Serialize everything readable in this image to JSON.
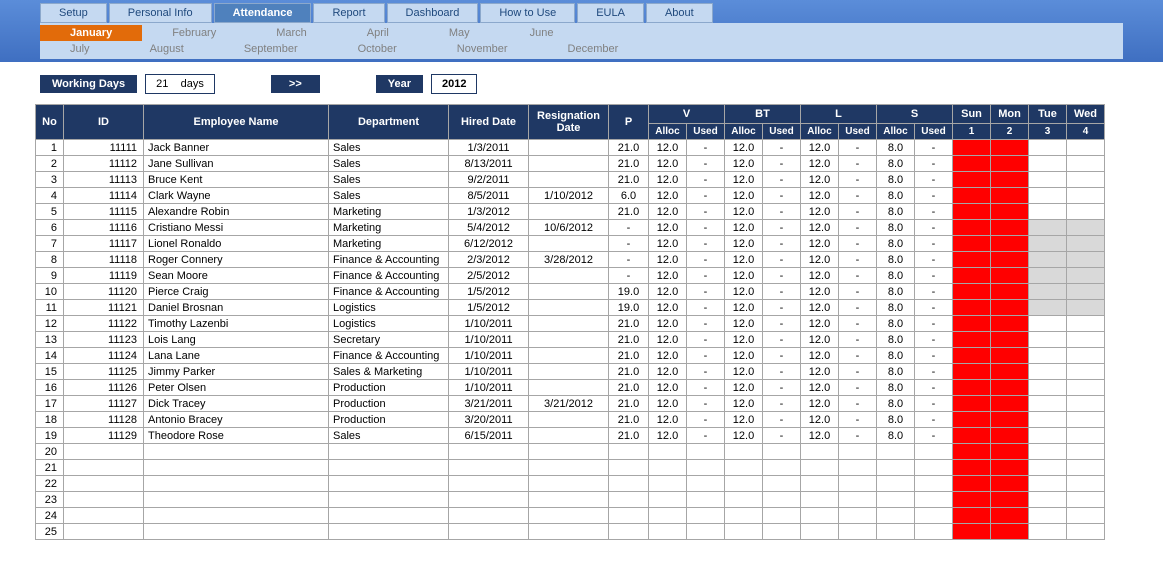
{
  "nav": {
    "tabs": [
      "Setup",
      "Personal Info",
      "Attendance",
      "Report",
      "Dashboard",
      "How to Use",
      "EULA",
      "About"
    ],
    "active_tab": 2,
    "months_row1": [
      "January",
      "February",
      "March",
      "April",
      "May",
      "June"
    ],
    "months_row2": [
      "July",
      "August",
      "September",
      "October",
      "November",
      "December"
    ],
    "active_month": 0
  },
  "controls": {
    "working_days_label": "Working Days",
    "working_days_value": "21",
    "working_days_unit": "days",
    "next_btn": ">>",
    "year_label": "Year",
    "year_value": "2012"
  },
  "colors": {
    "header_bg": "#1f3864",
    "header_fg": "#ffffff",
    "tab_bg": "#c5d9f1",
    "tab_active_bg": "#4f81bd",
    "month_active_bg": "#e26b0a",
    "weekend_bg": "#ff0000",
    "disabled_bg": "#d9d9d9",
    "border": "#a6a6a6"
  },
  "table": {
    "headers": {
      "no": "No",
      "id": "ID",
      "name": "Employee Name",
      "dept": "Department",
      "hired": "Hired Date",
      "resign": "Resignation Date",
      "p": "P",
      "groups": [
        "V",
        "BT",
        "L",
        "S"
      ],
      "sub": [
        "Alloc",
        "Used"
      ],
      "days": [
        "Sun",
        "Mon",
        "Tue",
        "Wed"
      ],
      "daynums": [
        "1",
        "2",
        "3",
        "4"
      ]
    },
    "rows": [
      {
        "no": 1,
        "id": "11111",
        "name": "Jack Banner",
        "dept": "Sales",
        "hired": "1/3/2011",
        "resign": "",
        "p": "21.0",
        "v_a": "12.0",
        "v_u": "-",
        "bt_a": "12.0",
        "bt_u": "-",
        "l_a": "12.0",
        "l_u": "-",
        "s_a": "8.0",
        "s_u": "-",
        "d": [
          "R",
          "R",
          "",
          ""
        ]
      },
      {
        "no": 2,
        "id": "11112",
        "name": "Jane Sullivan",
        "dept": "Sales",
        "hired": "8/13/2011",
        "resign": "",
        "p": "21.0",
        "v_a": "12.0",
        "v_u": "-",
        "bt_a": "12.0",
        "bt_u": "-",
        "l_a": "12.0",
        "l_u": "-",
        "s_a": "8.0",
        "s_u": "-",
        "d": [
          "R",
          "R",
          "",
          ""
        ]
      },
      {
        "no": 3,
        "id": "11113",
        "name": "Bruce Kent",
        "dept": "Sales",
        "hired": "9/2/2011",
        "resign": "",
        "p": "21.0",
        "v_a": "12.0",
        "v_u": "-",
        "bt_a": "12.0",
        "bt_u": "-",
        "l_a": "12.0",
        "l_u": "-",
        "s_a": "8.0",
        "s_u": "-",
        "d": [
          "R",
          "R",
          "",
          ""
        ]
      },
      {
        "no": 4,
        "id": "11114",
        "name": "Clark Wayne",
        "dept": "Sales",
        "hired": "8/5/2011",
        "resign": "1/10/2012",
        "p": "6.0",
        "v_a": "12.0",
        "v_u": "-",
        "bt_a": "12.0",
        "bt_u": "-",
        "l_a": "12.0",
        "l_u": "-",
        "s_a": "8.0",
        "s_u": "-",
        "d": [
          "R",
          "R",
          "",
          ""
        ]
      },
      {
        "no": 5,
        "id": "11115",
        "name": "Alexandre Robin",
        "dept": "Marketing",
        "hired": "1/3/2012",
        "resign": "",
        "p": "21.0",
        "v_a": "12.0",
        "v_u": "-",
        "bt_a": "12.0",
        "bt_u": "-",
        "l_a": "12.0",
        "l_u": "-",
        "s_a": "8.0",
        "s_u": "-",
        "d": [
          "R",
          "R",
          "",
          ""
        ]
      },
      {
        "no": 6,
        "id": "11116",
        "name": "Cristiano Messi",
        "dept": "Marketing",
        "hired": "5/4/2012",
        "resign": "10/6/2012",
        "p": "-",
        "v_a": "12.0",
        "v_u": "-",
        "bt_a": "12.0",
        "bt_u": "-",
        "l_a": "12.0",
        "l_u": "-",
        "s_a": "8.0",
        "s_u": "-",
        "d": [
          "R",
          "R",
          "G",
          "G"
        ]
      },
      {
        "no": 7,
        "id": "11117",
        "name": "Lionel Ronaldo",
        "dept": "Marketing",
        "hired": "6/12/2012",
        "resign": "",
        "p": "-",
        "v_a": "12.0",
        "v_u": "-",
        "bt_a": "12.0",
        "bt_u": "-",
        "l_a": "12.0",
        "l_u": "-",
        "s_a": "8.0",
        "s_u": "-",
        "d": [
          "R",
          "R",
          "G",
          "G"
        ]
      },
      {
        "no": 8,
        "id": "11118",
        "name": "Roger Connery",
        "dept": "Finance & Accounting",
        "hired": "2/3/2012",
        "resign": "3/28/2012",
        "p": "-",
        "v_a": "12.0",
        "v_u": "-",
        "bt_a": "12.0",
        "bt_u": "-",
        "l_a": "12.0",
        "l_u": "-",
        "s_a": "8.0",
        "s_u": "-",
        "d": [
          "R",
          "R",
          "G",
          "G"
        ]
      },
      {
        "no": 9,
        "id": "11119",
        "name": "Sean Moore",
        "dept": "Finance & Accounting",
        "hired": "2/5/2012",
        "resign": "",
        "p": "-",
        "v_a": "12.0",
        "v_u": "-",
        "bt_a": "12.0",
        "bt_u": "-",
        "l_a": "12.0",
        "l_u": "-",
        "s_a": "8.0",
        "s_u": "-",
        "d": [
          "R",
          "R",
          "G",
          "G"
        ]
      },
      {
        "no": 10,
        "id": "11120",
        "name": "Pierce Craig",
        "dept": "Finance & Accounting",
        "hired": "1/5/2012",
        "resign": "",
        "p": "19.0",
        "v_a": "12.0",
        "v_u": "-",
        "bt_a": "12.0",
        "bt_u": "-",
        "l_a": "12.0",
        "l_u": "-",
        "s_a": "8.0",
        "s_u": "-",
        "d": [
          "R",
          "R",
          "G",
          "G"
        ]
      },
      {
        "no": 11,
        "id": "11121",
        "name": "Daniel Brosnan",
        "dept": "Logistics",
        "hired": "1/5/2012",
        "resign": "",
        "p": "19.0",
        "v_a": "12.0",
        "v_u": "-",
        "bt_a": "12.0",
        "bt_u": "-",
        "l_a": "12.0",
        "l_u": "-",
        "s_a": "8.0",
        "s_u": "-",
        "d": [
          "R",
          "R",
          "G",
          "G"
        ]
      },
      {
        "no": 12,
        "id": "11122",
        "name": "Timothy Lazenbi",
        "dept": "Logistics",
        "hired": "1/10/2011",
        "resign": "",
        "p": "21.0",
        "v_a": "12.0",
        "v_u": "-",
        "bt_a": "12.0",
        "bt_u": "-",
        "l_a": "12.0",
        "l_u": "-",
        "s_a": "8.0",
        "s_u": "-",
        "d": [
          "R",
          "R",
          "",
          ""
        ]
      },
      {
        "no": 13,
        "id": "11123",
        "name": "Lois Lang",
        "dept": "Secretary",
        "hired": "1/10/2011",
        "resign": "",
        "p": "21.0",
        "v_a": "12.0",
        "v_u": "-",
        "bt_a": "12.0",
        "bt_u": "-",
        "l_a": "12.0",
        "l_u": "-",
        "s_a": "8.0",
        "s_u": "-",
        "d": [
          "R",
          "R",
          "",
          ""
        ]
      },
      {
        "no": 14,
        "id": "11124",
        "name": "Lana Lane",
        "dept": "Finance & Accounting",
        "hired": "1/10/2011",
        "resign": "",
        "p": "21.0",
        "v_a": "12.0",
        "v_u": "-",
        "bt_a": "12.0",
        "bt_u": "-",
        "l_a": "12.0",
        "l_u": "-",
        "s_a": "8.0",
        "s_u": "-",
        "d": [
          "R",
          "R",
          "",
          ""
        ]
      },
      {
        "no": 15,
        "id": "11125",
        "name": "Jimmy Parker",
        "dept": "Sales & Marketing",
        "hired": "1/10/2011",
        "resign": "",
        "p": "21.0",
        "v_a": "12.0",
        "v_u": "-",
        "bt_a": "12.0",
        "bt_u": "-",
        "l_a": "12.0",
        "l_u": "-",
        "s_a": "8.0",
        "s_u": "-",
        "d": [
          "R",
          "R",
          "",
          ""
        ]
      },
      {
        "no": 16,
        "id": "11126",
        "name": "Peter Olsen",
        "dept": "Production",
        "hired": "1/10/2011",
        "resign": "",
        "p": "21.0",
        "v_a": "12.0",
        "v_u": "-",
        "bt_a": "12.0",
        "bt_u": "-",
        "l_a": "12.0",
        "l_u": "-",
        "s_a": "8.0",
        "s_u": "-",
        "d": [
          "R",
          "R",
          "",
          ""
        ]
      },
      {
        "no": 17,
        "id": "11127",
        "name": "Dick Tracey",
        "dept": "Production",
        "hired": "3/21/2011",
        "resign": "3/21/2012",
        "p": "21.0",
        "v_a": "12.0",
        "v_u": "-",
        "bt_a": "12.0",
        "bt_u": "-",
        "l_a": "12.0",
        "l_u": "-",
        "s_a": "8.0",
        "s_u": "-",
        "d": [
          "R",
          "R",
          "",
          ""
        ]
      },
      {
        "no": 18,
        "id": "11128",
        "name": "Antonio Bracey",
        "dept": "Production",
        "hired": "3/20/2011",
        "resign": "",
        "p": "21.0",
        "v_a": "12.0",
        "v_u": "-",
        "bt_a": "12.0",
        "bt_u": "-",
        "l_a": "12.0",
        "l_u": "-",
        "s_a": "8.0",
        "s_u": "-",
        "d": [
          "R",
          "R",
          "",
          ""
        ]
      },
      {
        "no": 19,
        "id": "11129",
        "name": "Theodore Rose",
        "dept": "Sales",
        "hired": "6/15/2011",
        "resign": "",
        "p": "21.0",
        "v_a": "12.0",
        "v_u": "-",
        "bt_a": "12.0",
        "bt_u": "-",
        "l_a": "12.0",
        "l_u": "-",
        "s_a": "8.0",
        "s_u": "-",
        "d": [
          "R",
          "R",
          "",
          ""
        ]
      },
      {
        "no": 20,
        "id": "",
        "name": "",
        "dept": "",
        "hired": "",
        "resign": "",
        "p": "",
        "v_a": "",
        "v_u": "",
        "bt_a": "",
        "bt_u": "",
        "l_a": "",
        "l_u": "",
        "s_a": "",
        "s_u": "",
        "d": [
          "R",
          "R",
          "",
          ""
        ]
      },
      {
        "no": 21,
        "id": "",
        "name": "",
        "dept": "",
        "hired": "",
        "resign": "",
        "p": "",
        "v_a": "",
        "v_u": "",
        "bt_a": "",
        "bt_u": "",
        "l_a": "",
        "l_u": "",
        "s_a": "",
        "s_u": "",
        "d": [
          "R",
          "R",
          "",
          ""
        ]
      },
      {
        "no": 22,
        "id": "",
        "name": "",
        "dept": "",
        "hired": "",
        "resign": "",
        "p": "",
        "v_a": "",
        "v_u": "",
        "bt_a": "",
        "bt_u": "",
        "l_a": "",
        "l_u": "",
        "s_a": "",
        "s_u": "",
        "d": [
          "R",
          "R",
          "",
          ""
        ]
      },
      {
        "no": 23,
        "id": "",
        "name": "",
        "dept": "",
        "hired": "",
        "resign": "",
        "p": "",
        "v_a": "",
        "v_u": "",
        "bt_a": "",
        "bt_u": "",
        "l_a": "",
        "l_u": "",
        "s_a": "",
        "s_u": "",
        "d": [
          "R",
          "R",
          "",
          ""
        ]
      },
      {
        "no": 24,
        "id": "",
        "name": "",
        "dept": "",
        "hired": "",
        "resign": "",
        "p": "",
        "v_a": "",
        "v_u": "",
        "bt_a": "",
        "bt_u": "",
        "l_a": "",
        "l_u": "",
        "s_a": "",
        "s_u": "",
        "d": [
          "R",
          "R",
          "",
          ""
        ]
      },
      {
        "no": 25,
        "id": "",
        "name": "",
        "dept": "",
        "hired": "",
        "resign": "",
        "p": "",
        "v_a": "",
        "v_u": "",
        "bt_a": "",
        "bt_u": "",
        "l_a": "",
        "l_u": "",
        "s_a": "",
        "s_u": "",
        "d": [
          "R",
          "R",
          "",
          ""
        ]
      }
    ]
  }
}
